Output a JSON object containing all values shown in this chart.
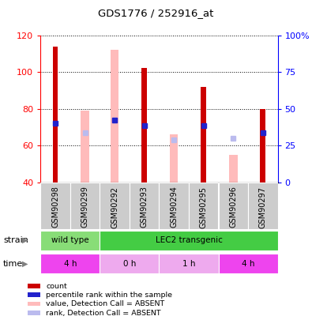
{
  "title": "GDS1776 / 252916_at",
  "samples": [
    "GSM90298",
    "GSM90299",
    "GSM90292",
    "GSM90293",
    "GSM90294",
    "GSM90295",
    "GSM90296",
    "GSM90297"
  ],
  "count_values": [
    114,
    null,
    null,
    102,
    null,
    92,
    null,
    80
  ],
  "rank_values": [
    72,
    null,
    74,
    71,
    null,
    71,
    null,
    67
  ],
  "absent_value_bars": [
    null,
    79,
    112,
    null,
    66,
    null,
    55,
    null
  ],
  "absent_rank_values": [
    null,
    67,
    74,
    null,
    63,
    null,
    64,
    null
  ],
  "ylim": [
    40,
    120
  ],
  "y_left_ticks": [
    40,
    60,
    80,
    100,
    120
  ],
  "y_right_ticks": [
    0,
    25,
    50,
    75,
    100
  ],
  "count_color": "#cc0000",
  "rank_color": "#2222cc",
  "absent_value_color": "#ffbbbb",
  "absent_rank_color": "#bbbbee",
  "thin_bar_width": 0.18,
  "absent_bar_width": 0.28,
  "strain_row": [
    {
      "label": "wild type",
      "start": 0,
      "end": 2,
      "color": "#88dd77"
    },
    {
      "label": "LEC2 transgenic",
      "start": 2,
      "end": 8,
      "color": "#44cc44"
    }
  ],
  "time_row": [
    {
      "label": "4 h",
      "start": 0,
      "end": 2,
      "color": "#ee44ee"
    },
    {
      "label": "0 h",
      "start": 2,
      "end": 4,
      "color": "#eeaaee"
    },
    {
      "label": "1 h",
      "start": 4,
      "end": 6,
      "color": "#eeaaee"
    },
    {
      "label": "4 h",
      "start": 6,
      "end": 8,
      "color": "#ee44ee"
    }
  ],
  "legend_items": [
    {
      "label": "count",
      "color": "#cc0000"
    },
    {
      "label": "percentile rank within the sample",
      "color": "#2222cc"
    },
    {
      "label": "value, Detection Call = ABSENT",
      "color": "#ffbbbb"
    },
    {
      "label": "rank, Detection Call = ABSENT",
      "color": "#bbbbee"
    }
  ],
  "xticklabel_bg": "#cccccc"
}
